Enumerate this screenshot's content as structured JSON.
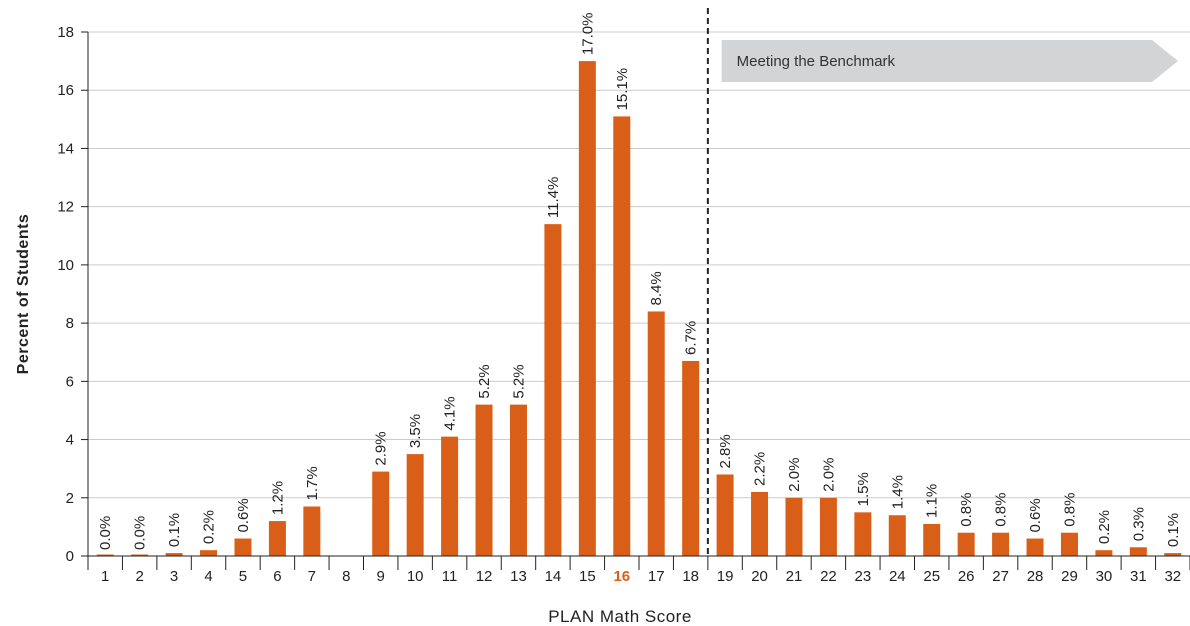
{
  "chart_data": {
    "type": "bar",
    "xlabel": "PLAN Math Score",
    "ylabel": "Percent of Students",
    "ylim": [
      0,
      18
    ],
    "yticks": [
      0,
      2,
      4,
      6,
      8,
      10,
      12,
      14,
      16,
      18
    ],
    "grid": true,
    "categories": [
      "1",
      "2",
      "3",
      "4",
      "5",
      "6",
      "7",
      "8",
      "9",
      "10",
      "11",
      "12",
      "13",
      "14",
      "15",
      "16",
      "17",
      "18",
      "19",
      "20",
      "21",
      "22",
      "23",
      "24",
      "25",
      "26",
      "27",
      "28",
      "29",
      "30",
      "31",
      "32"
    ],
    "values": [
      0.0,
      0.0,
      0.1,
      0.2,
      0.6,
      1.2,
      1.7,
      null,
      2.9,
      3.5,
      4.1,
      5.2,
      5.2,
      11.4,
      17.0,
      15.1,
      8.4,
      6.7,
      2.8,
      2.2,
      2.0,
      2.0,
      1.5,
      1.4,
      1.1,
      0.8,
      0.8,
      0.6,
      0.8,
      0.2,
      0.3,
      0.1
    ],
    "data_labels": [
      "0.0%",
      "0.0%",
      "0.1%",
      "0.2%",
      "0.6%",
      "1.2%",
      "1.7%",
      "",
      "2.9%",
      "3.5%",
      "4.1%",
      "5.2%",
      "5.2%",
      "11.4%",
      "17.0%",
      "15.1%",
      "8.4%",
      "6.7%",
      "2.8%",
      "2.2%",
      "2.0%",
      "2.0%",
      "1.5%",
      "1.4%",
      "1.1%",
      "0.8%",
      "0.8%",
      "0.6%",
      "0.8%",
      "0.2%",
      "0.3%",
      "0.1%"
    ],
    "highlight_category": "16",
    "benchmark_score": 18.5,
    "annotation": "Meeting the Benchmark",
    "colors": {
      "bar": "#d95f18",
      "highlight_text": "#d95f18",
      "grid": "#cccccc",
      "banner": "#d3d4d6",
      "benchmark_line": "#222222"
    }
  }
}
